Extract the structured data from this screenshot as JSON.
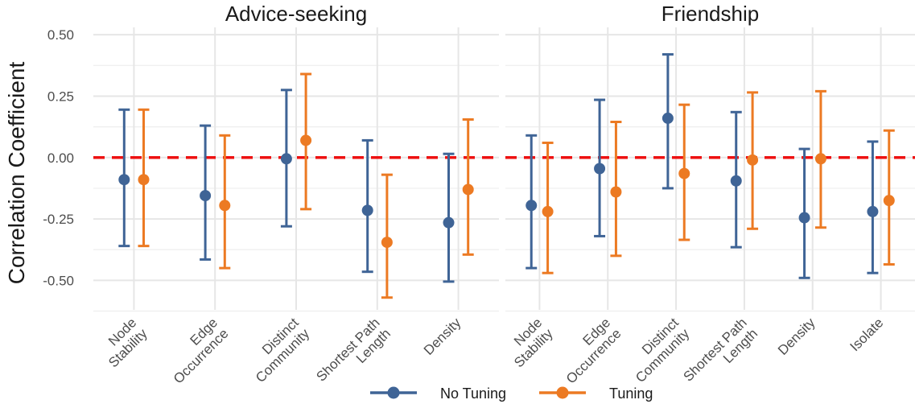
{
  "chart_data": {
    "type": "errorbar",
    "ylabel": "Correlation Coefficient",
    "ylim": [
      -0.62,
      0.53
    ],
    "yticks": [
      {
        "value": 0.5,
        "label": "0.50"
      },
      {
        "value": 0.25,
        "label": "0.25"
      },
      {
        "value": 0.0,
        "label": "0.00"
      },
      {
        "value": -0.25,
        "label": "-0.25"
      },
      {
        "value": -0.5,
        "label": "-0.50"
      }
    ],
    "reference_line": {
      "y": 0,
      "color": "#ee1111",
      "style": "dashed"
    },
    "series": [
      {
        "name": "No Tuning",
        "color": "#3f6496"
      },
      {
        "name": "Tuning",
        "color": "#ec7a23"
      }
    ],
    "legend": {
      "position": "bottom"
    },
    "grid": true,
    "facets": [
      {
        "title": "Advice-seeking",
        "categories": [
          [
            "Node",
            "Stability"
          ],
          [
            "Edge",
            "Occurrence"
          ],
          [
            "Distinct",
            "Community"
          ],
          [
            "Shortest Path",
            "Length"
          ],
          [
            "Density"
          ]
        ],
        "points": [
          {
            "category": 0,
            "series": 0,
            "estimate": -0.09,
            "lower": -0.36,
            "upper": 0.195
          },
          {
            "category": 0,
            "series": 1,
            "estimate": -0.09,
            "lower": -0.36,
            "upper": 0.195
          },
          {
            "category": 1,
            "series": 0,
            "estimate": -0.155,
            "lower": -0.415,
            "upper": 0.13
          },
          {
            "category": 1,
            "series": 1,
            "estimate": -0.195,
            "lower": -0.45,
            "upper": 0.09
          },
          {
            "category": 2,
            "series": 0,
            "estimate": -0.005,
            "lower": -0.28,
            "upper": 0.275
          },
          {
            "category": 2,
            "series": 1,
            "estimate": 0.07,
            "lower": -0.21,
            "upper": 0.34
          },
          {
            "category": 3,
            "series": 0,
            "estimate": -0.215,
            "lower": -0.465,
            "upper": 0.07
          },
          {
            "category": 3,
            "series": 1,
            "estimate": -0.345,
            "lower": -0.57,
            "upper": -0.07
          },
          {
            "category": 4,
            "series": 0,
            "estimate": -0.265,
            "lower": -0.505,
            "upper": 0.015
          },
          {
            "category": 4,
            "series": 1,
            "estimate": -0.13,
            "lower": -0.395,
            "upper": 0.155
          }
        ]
      },
      {
        "title": "Friendship",
        "categories": [
          [
            "Node",
            "Stability"
          ],
          [
            "Edge",
            "Occurrence"
          ],
          [
            "Distinct",
            "Community"
          ],
          [
            "Shortest Path",
            "Length"
          ],
          [
            "Density"
          ],
          [
            "Isolate"
          ]
        ],
        "points": [
          {
            "category": 0,
            "series": 0,
            "estimate": -0.195,
            "lower": -0.45,
            "upper": 0.09
          },
          {
            "category": 0,
            "series": 1,
            "estimate": -0.22,
            "lower": -0.47,
            "upper": 0.06
          },
          {
            "category": 1,
            "series": 0,
            "estimate": -0.045,
            "lower": -0.32,
            "upper": 0.235
          },
          {
            "category": 1,
            "series": 1,
            "estimate": -0.14,
            "lower": -0.4,
            "upper": 0.145
          },
          {
            "category": 2,
            "series": 0,
            "estimate": 0.16,
            "lower": -0.125,
            "upper": 0.42
          },
          {
            "category": 2,
            "series": 1,
            "estimate": -0.065,
            "lower": -0.335,
            "upper": 0.215
          },
          {
            "category": 3,
            "series": 0,
            "estimate": -0.095,
            "lower": -0.365,
            "upper": 0.185
          },
          {
            "category": 3,
            "series": 1,
            "estimate": -0.01,
            "lower": -0.29,
            "upper": 0.265
          },
          {
            "category": 4,
            "series": 0,
            "estimate": -0.245,
            "lower": -0.49,
            "upper": 0.035
          },
          {
            "category": 4,
            "series": 1,
            "estimate": -0.005,
            "lower": -0.285,
            "upper": 0.27
          },
          {
            "category": 5,
            "series": 0,
            "estimate": -0.22,
            "lower": -0.47,
            "upper": 0.065
          },
          {
            "category": 5,
            "series": 1,
            "estimate": -0.175,
            "lower": -0.435,
            "upper": 0.11
          }
        ]
      }
    ]
  }
}
